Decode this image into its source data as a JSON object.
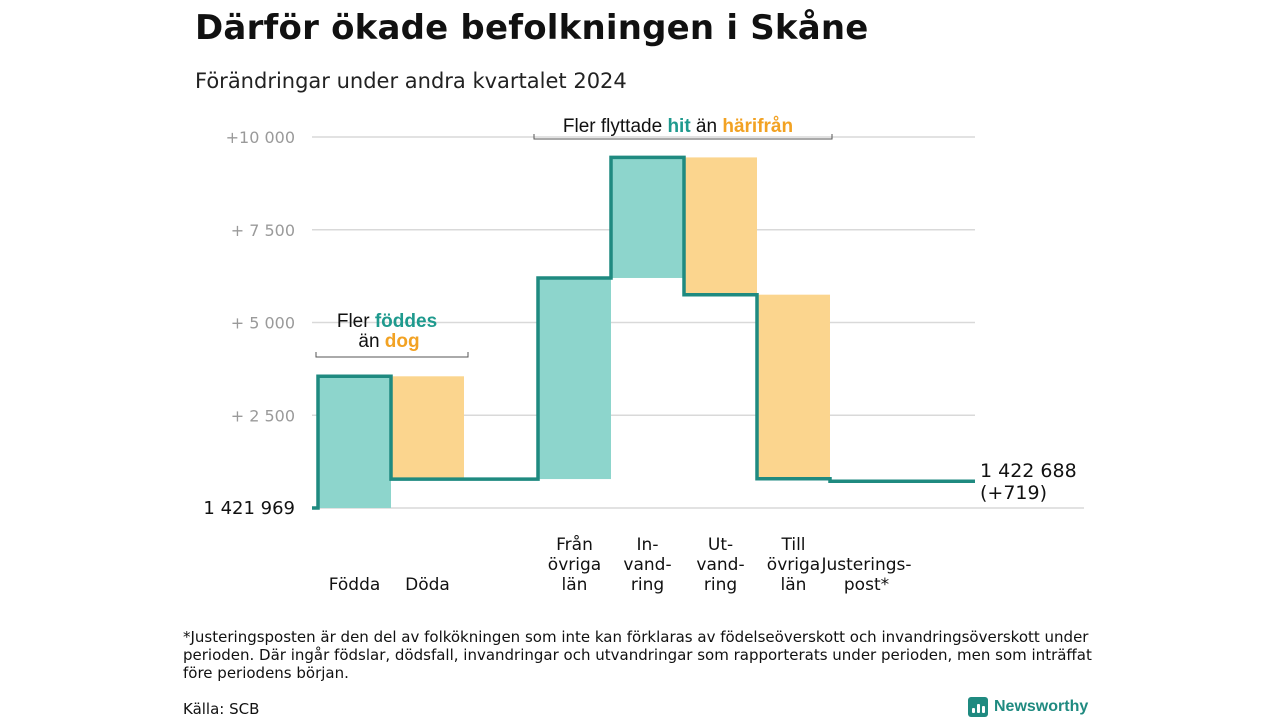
{
  "title": "Därför ökade befolkningen i Skåne",
  "subtitle": "Förändringar under andra kvartalet 2024",
  "footnote": "*Justeringsposten är den del av folkökningen som inte kan förklaras av födelseöverskott och invandringsöverskott under perioden. Där ingår födslar, dödsfall, invandringar och utvandringar som rapporterats under perioden, men som inträffat före periodens början.",
  "source": "Källa: SCB",
  "logo": {
    "text": "Newsworthy",
    "icon": "bar-chart-icon"
  },
  "colors": {
    "increase": "#8dd5cc",
    "decrease": "#fbd58e",
    "line": "#1f8a80",
    "hit": "#1f9a8e",
    "harifran": "#f2a223",
    "grid": "#d9d9d9",
    "tick": "#9a9a9a"
  },
  "chart_data": {
    "type": "waterfall",
    "base_value": 1421969,
    "base_label": "1 421 969",
    "end_label_line1": "1 422 688",
    "end_label_line2": "(+719)",
    "ylim": [
      0,
      10000
    ],
    "yticks": [
      {
        "value": 2500,
        "label": "+ 2 500"
      },
      {
        "value": 5000,
        "label": "+ 5 000"
      },
      {
        "value": 7500,
        "label": "+ 7 500"
      },
      {
        "value": 10000,
        "label": "+10 000"
      }
    ],
    "steps": [
      {
        "label_lines": [
          "Födda"
        ],
        "kind": "increase",
        "start": 0,
        "end": 3550
      },
      {
        "label_lines": [
          "Döda"
        ],
        "kind": "decrease",
        "start": 3550,
        "end": 780
      },
      {
        "label_lines": [
          "Från",
          "övriga",
          "län"
        ],
        "kind": "increase",
        "start": 780,
        "end": 6200
      },
      {
        "label_lines": [
          "In-",
          "vand-",
          "ring"
        ],
        "kind": "increase",
        "start": 6200,
        "end": 9450
      },
      {
        "label_lines": [
          "Ut-",
          "vand-",
          "ring"
        ],
        "kind": "decrease",
        "start": 9450,
        "end": 5750
      },
      {
        "label_lines": [
          "Till",
          "övriga",
          "län"
        ],
        "kind": "decrease",
        "start": 5750,
        "end": 790
      },
      {
        "label_lines": [
          "Justerings-",
          "post*"
        ],
        "kind": "adjustment",
        "start": 790,
        "end": 719
      }
    ],
    "annotations": [
      {
        "parts": [
          {
            "text": "Fler ",
            "style": "plain"
          },
          {
            "text": "födde",
            "style": "hit"
          },
          {
            "text": "s",
            "style": "hit"
          }
        ],
        "line2": [
          {
            "text": "än ",
            "style": "plain"
          },
          {
            "text": "dog",
            "style": "harifran"
          }
        ]
      },
      {
        "parts": [
          {
            "text": "Fler flyttade ",
            "style": "plain"
          },
          {
            "text": "hit",
            "style": "hit"
          },
          {
            "text": "  än ",
            "style": "plain"
          },
          {
            "text": "härifrån",
            "style": "harifran"
          }
        ]
      }
    ]
  }
}
